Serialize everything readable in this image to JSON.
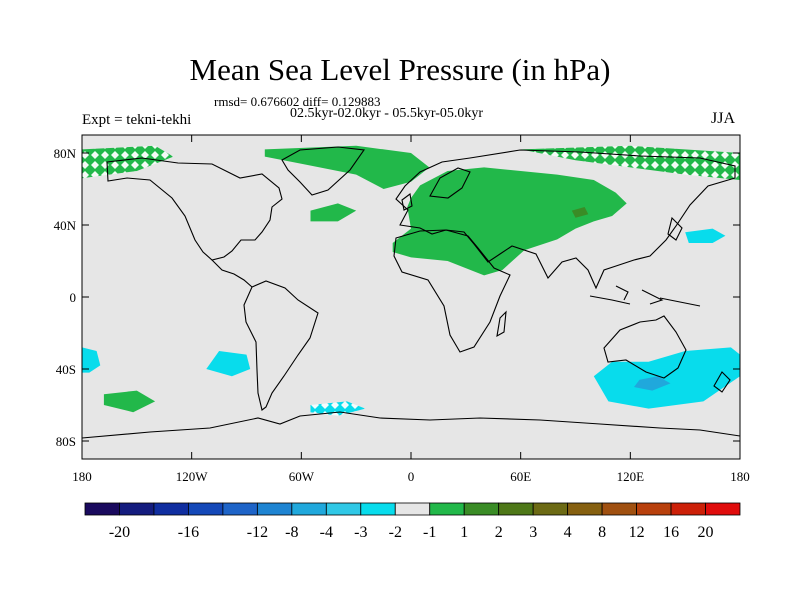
{
  "header": {
    "title": "Mean Sea Level Pressure (in hPa)",
    "stats": "rmsd= 0.676602 diff= 0.129883",
    "subtitle": "02.5kyr-02.0kyr - 05.5kyr-05.0kyr",
    "experiment": "Expt = tekni-tekhi",
    "season": "JJA"
  },
  "chart_data": {
    "type": "heatmap",
    "projection": "cylindrical equidistant",
    "title": "Mean Sea Level Pressure (in hPa)",
    "units": "hPa",
    "x_axis": {
      "range": [
        -180,
        180
      ],
      "ticks": [
        {
          "value": -180,
          "label": "180"
        },
        {
          "value": -120,
          "label": "120W"
        },
        {
          "value": -60,
          "label": "60W"
        },
        {
          "value": 0,
          "label": "0"
        },
        {
          "value": 60,
          "label": "60E"
        },
        {
          "value": 120,
          "label": "120E"
        },
        {
          "value": 180,
          "label": "180"
        }
      ]
    },
    "y_axis": {
      "range": [
        -90,
        90
      ],
      "ticks": [
        {
          "value": 80,
          "label": "80N"
        },
        {
          "value": 40,
          "label": "40N"
        },
        {
          "value": 0,
          "label": "0"
        },
        {
          "value": -40,
          "label": "40S"
        },
        {
          "value": -80,
          "label": "80S"
        }
      ]
    },
    "colorbar": {
      "colors": [
        "#1a0a5e",
        "#141c7e",
        "#102ea0",
        "#1448b8",
        "#1e64c8",
        "#1e84d2",
        "#20a8dc",
        "#30c8e6",
        "#08dcec",
        "#e6e6e6",
        "#22b84a",
        "#3a8c26",
        "#4e7818",
        "#6c6a14",
        "#866010",
        "#a05010",
        "#b8400c",
        "#cc2008",
        "#e00c0c"
      ],
      "labels": [
        "-20",
        "-16",
        "-12",
        "-8",
        "-4",
        "-3",
        "-2",
        "-1",
        "1",
        "2",
        "3",
        "4",
        "8",
        "12",
        "16",
        "20"
      ],
      "label_after_box": [
        1,
        3,
        5,
        6,
        7,
        8,
        9,
        10,
        11,
        12,
        13,
        14,
        15,
        16,
        17,
        18
      ]
    },
    "regions": [
      {
        "name": "eurasia-positive",
        "level": "1 to 2",
        "color": "#22b84a",
        "lonlat": [
          [
            -10,
            30
          ],
          [
            0,
            38
          ],
          [
            -2,
            50
          ],
          [
            0,
            55
          ],
          [
            5,
            62
          ],
          [
            20,
            70
          ],
          [
            40,
            72
          ],
          [
            60,
            70
          ],
          [
            80,
            68
          ],
          [
            100,
            65
          ],
          [
            112,
            58
          ],
          [
            118,
            52
          ],
          [
            110,
            45
          ],
          [
            100,
            42
          ],
          [
            90,
            38
          ],
          [
            80,
            32
          ],
          [
            62,
            26
          ],
          [
            50,
            15
          ],
          [
            40,
            12
          ],
          [
            20,
            20
          ],
          [
            0,
            22
          ],
          [
            -10,
            25
          ]
        ]
      },
      {
        "name": "arctic-russia-hatched",
        "level": "1 to 2",
        "color": "#22b84a",
        "lonlat": [
          [
            60,
            82
          ],
          [
            120,
            84
          ],
          [
            180,
            80
          ],
          [
            180,
            65
          ],
          [
            150,
            68
          ],
          [
            120,
            72
          ],
          [
            90,
            76
          ],
          [
            70,
            80
          ]
        ]
      },
      {
        "name": "greenland-north-atlantic",
        "level": "1 to 2",
        "color": "#22b84a",
        "lonlat": [
          [
            -80,
            82
          ],
          [
            -30,
            84
          ],
          [
            0,
            80
          ],
          [
            10,
            72
          ],
          [
            0,
            64
          ],
          [
            -15,
            60
          ],
          [
            -30,
            68
          ],
          [
            -60,
            74
          ],
          [
            -80,
            78
          ]
        ]
      },
      {
        "name": "alaska-hatched",
        "level": "1 to 2",
        "color": "#22b84a",
        "lonlat": [
          [
            -180,
            82
          ],
          [
            -140,
            84
          ],
          [
            -130,
            78
          ],
          [
            -150,
            70
          ],
          [
            -180,
            66
          ]
        ]
      },
      {
        "name": "north-atlantic-patch",
        "level": "1 to 2",
        "color": "#22b84a",
        "lonlat": [
          [
            -55,
            48
          ],
          [
            -40,
            52
          ],
          [
            -30,
            48
          ],
          [
            -40,
            42
          ],
          [
            -55,
            42
          ]
        ]
      },
      {
        "name": "mongolia-core",
        "level": "2 to 3",
        "color": "#3a8c26",
        "lonlat": [
          [
            88,
            48
          ],
          [
            95,
            50
          ],
          [
            97,
            46
          ],
          [
            90,
            44
          ]
        ]
      },
      {
        "name": "south-pacific-positive",
        "level": "1 to 2",
        "color": "#22b84a",
        "lonlat": [
          [
            -168,
            -54
          ],
          [
            -150,
            -52
          ],
          [
            -140,
            -58
          ],
          [
            -152,
            -64
          ],
          [
            -168,
            -60
          ]
        ]
      },
      {
        "name": "north-pacific-negative",
        "level": "-1 to -2",
        "color": "#08dcec",
        "lonlat": [
          [
            150,
            36
          ],
          [
            165,
            38
          ],
          [
            172,
            34
          ],
          [
            165,
            30
          ],
          [
            152,
            30
          ]
        ]
      },
      {
        "name": "southeast-pacific-negative",
        "level": "-1 to -2",
        "color": "#08dcec",
        "lonlat": [
          [
            -105,
            -30
          ],
          [
            -90,
            -32
          ],
          [
            -88,
            -40
          ],
          [
            -98,
            -44
          ],
          [
            -112,
            -40
          ]
        ]
      },
      {
        "name": "date-line-negative",
        "level": "-1 to -2",
        "color": "#08dcec",
        "lonlat": [
          [
            -180,
            -28
          ],
          [
            -172,
            -30
          ],
          [
            -170,
            -38
          ],
          [
            -176,
            -42
          ],
          [
            -180,
            -42
          ]
        ]
      },
      {
        "name": "south-atlantic-hatched",
        "level": "-1 to -2",
        "color": "#08dcec",
        "lonlat": [
          [
            -55,
            -60
          ],
          [
            -35,
            -58
          ],
          [
            -25,
            -62
          ],
          [
            -40,
            -66
          ],
          [
            -55,
            -64
          ]
        ]
      },
      {
        "name": "southern-australia-negative",
        "level": "-1 to -2",
        "color": "#08dcec",
        "lonlat": [
          [
            100,
            -44
          ],
          [
            110,
            -36
          ],
          [
            130,
            -36
          ],
          [
            150,
            -30
          ],
          [
            175,
            -28
          ],
          [
            180,
            -32
          ],
          [
            180,
            -44
          ],
          [
            160,
            -58
          ],
          [
            130,
            -62
          ],
          [
            108,
            -58
          ]
        ]
      },
      {
        "name": "southern-australia-core",
        "level": "-2 to -3",
        "color": "#20a8dc",
        "lonlat": [
          [
            125,
            -46
          ],
          [
            135,
            -44
          ],
          [
            142,
            -48
          ],
          [
            132,
            -52
          ],
          [
            122,
            -50
          ]
        ]
      }
    ]
  }
}
